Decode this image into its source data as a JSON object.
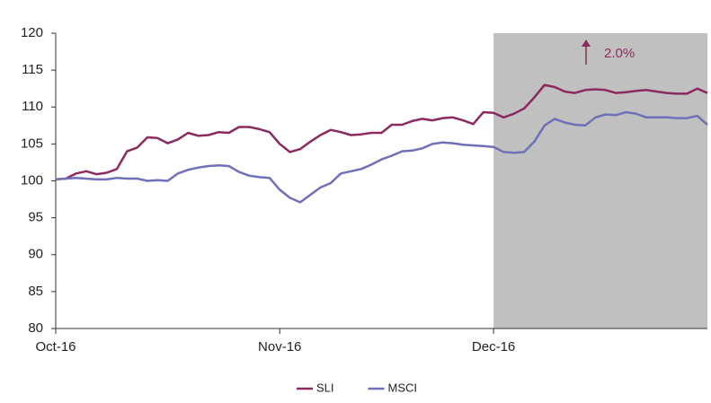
{
  "chart_data": {
    "type": "line",
    "categories": [
      "Oct-16",
      null,
      null,
      null,
      null,
      null,
      null,
      null,
      null,
      null,
      null,
      null,
      null,
      null,
      null,
      null,
      null,
      null,
      null,
      null,
      null,
      null,
      "Nov-16",
      null,
      null,
      null,
      null,
      null,
      null,
      null,
      null,
      null,
      null,
      null,
      null,
      null,
      null,
      null,
      null,
      null,
      null,
      null,
      null,
      "Dec-16",
      null,
      null,
      null,
      null,
      null,
      null,
      null,
      null,
      null,
      null,
      null,
      null,
      null,
      null,
      null,
      null,
      null,
      null,
      null,
      null,
      null
    ],
    "series": [
      {
        "name": "SLI",
        "color": "#8b2a5e",
        "values": [
          100.2,
          100.3,
          101.0,
          101.3,
          100.9,
          101.1,
          101.6,
          104.0,
          104.5,
          105.9,
          105.8,
          105.1,
          105.6,
          106.5,
          106.1,
          106.2,
          106.6,
          106.5,
          107.3,
          107.3,
          107.0,
          106.6,
          105.0,
          103.9,
          104.3,
          105.3,
          106.2,
          106.9,
          106.6,
          106.2,
          106.3,
          106.5,
          106.5,
          107.6,
          107.6,
          108.1,
          108.4,
          108.2,
          108.5,
          108.6,
          108.2,
          107.7,
          109.3,
          109.2,
          108.6,
          109.1,
          109.8,
          111.3,
          113.0,
          112.7,
          112.1,
          111.9,
          112.3,
          112.4,
          112.3,
          111.9,
          112.0,
          112.2,
          112.3,
          112.1,
          111.9,
          111.8,
          111.8,
          112.5,
          111.9
        ]
      },
      {
        "name": "MSCI",
        "color": "#7070b8",
        "values": [
          100.2,
          100.3,
          100.4,
          100.3,
          100.2,
          100.2,
          100.4,
          100.3,
          100.3,
          100.0,
          100.1,
          100.0,
          101.0,
          101.5,
          101.8,
          102.0,
          102.1,
          102.0,
          101.2,
          100.7,
          100.5,
          100.4,
          98.8,
          97.7,
          97.1,
          98.1,
          99.1,
          99.7,
          101.0,
          101.3,
          101.6,
          102.2,
          102.9,
          103.4,
          104.0,
          104.1,
          104.4,
          105.0,
          105.2,
          105.1,
          104.9,
          104.8,
          104.7,
          104.6,
          103.9,
          103.8,
          103.9,
          105.3,
          107.5,
          108.4,
          107.9,
          107.6,
          107.5,
          108.6,
          109.0,
          108.9,
          109.3,
          109.1,
          108.6,
          108.6,
          108.6,
          108.5,
          108.5,
          108.8,
          107.6
        ]
      }
    ],
    "ylim": [
      80,
      120
    ],
    "yticks": [
      80,
      85,
      90,
      95,
      100,
      105,
      110,
      115,
      120
    ],
    "shaded_region": {
      "from": "Dec-16",
      "color": "#c0c0c0"
    },
    "annotation": "2.0%",
    "legend": "bottom"
  }
}
